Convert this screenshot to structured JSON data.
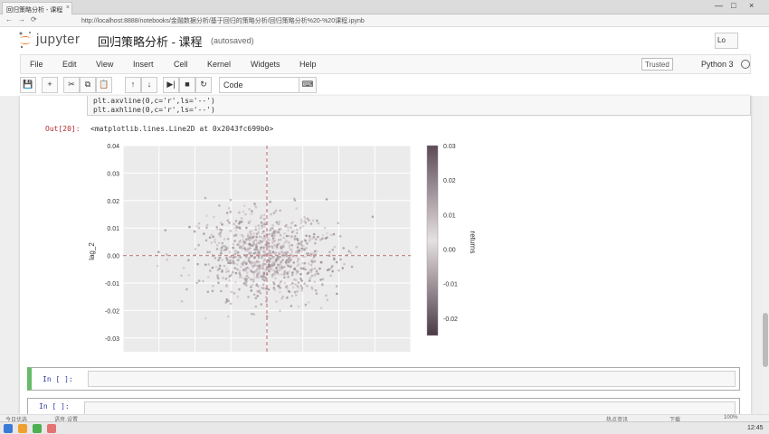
{
  "browser": {
    "tab_title": "回归策略分析 - 课程",
    "tab_close": "×",
    "url": "http://localhost:8888/notebooks/金融数据分析/基于回归的策略分析/回归策略分析%20-%20课程.ipynb",
    "back": "←",
    "forward": "→",
    "reload": "⟳",
    "minimize": "—",
    "maximize": "□",
    "close": "×"
  },
  "header": {
    "logo_text": "jupyter",
    "notebook_name": "回归策略分析 - 课程",
    "autosave": "(autosaved)",
    "logout": "Lo"
  },
  "menu": {
    "items": [
      "File",
      "Edit",
      "View",
      "Insert",
      "Cell",
      "Kernel",
      "Widgets",
      "Help"
    ],
    "trusted": "Trusted",
    "kernel": "Python 3"
  },
  "toolbar": {
    "save": "💾",
    "add": "+",
    "cut": "✂",
    "copy": "⧉",
    "paste": "📋",
    "up": "↑",
    "down": "↓",
    "run": "▶|",
    "stop": "■",
    "restart": "↻",
    "cell_type": "Code",
    "cell_type_arrow": "▾",
    "keyboard": "⌨"
  },
  "cells": {
    "code_line1": "plt.axvline(0,c='r',ls='--')",
    "code_line2": "plt.axhline(0,c='r',ls='--')",
    "out_prompt": "Out[20]:",
    "out_text": "<matplotlib.lines.Line2D at 0x2043fc699b0>",
    "in_prompt_1": "In [ ]:",
    "in_prompt_2": "In [ ]:"
  },
  "chart_data": {
    "type": "scatter",
    "ylabel": "lag_2",
    "colorbar_label": "returns",
    "xlim": [
      -0.04,
      0.04
    ],
    "ylim": [
      -0.035,
      0.04
    ],
    "yticks": [
      "0.04",
      "0.03",
      "0.02",
      "0.01",
      "0.00",
      "-0.01",
      "-0.02",
      "-0.03"
    ],
    "colorbar_ticks": [
      "0.03",
      "0.02",
      "0.01",
      "0.00",
      "-0.01",
      "-0.02"
    ],
    "colorbar_range": [
      -0.025,
      0.03
    ],
    "grid": true,
    "vline_x": 0,
    "hline_y": 0,
    "line_color": "#c98a8a",
    "point_color": "#a09098",
    "background": "#ebebeb"
  },
  "status": {
    "left1": "今日优选",
    "left2": "语音·设置",
    "right1": "热点资讯",
    "right2": "下载",
    "right3": "100%"
  },
  "taskbar": {
    "clock": "12:45"
  }
}
